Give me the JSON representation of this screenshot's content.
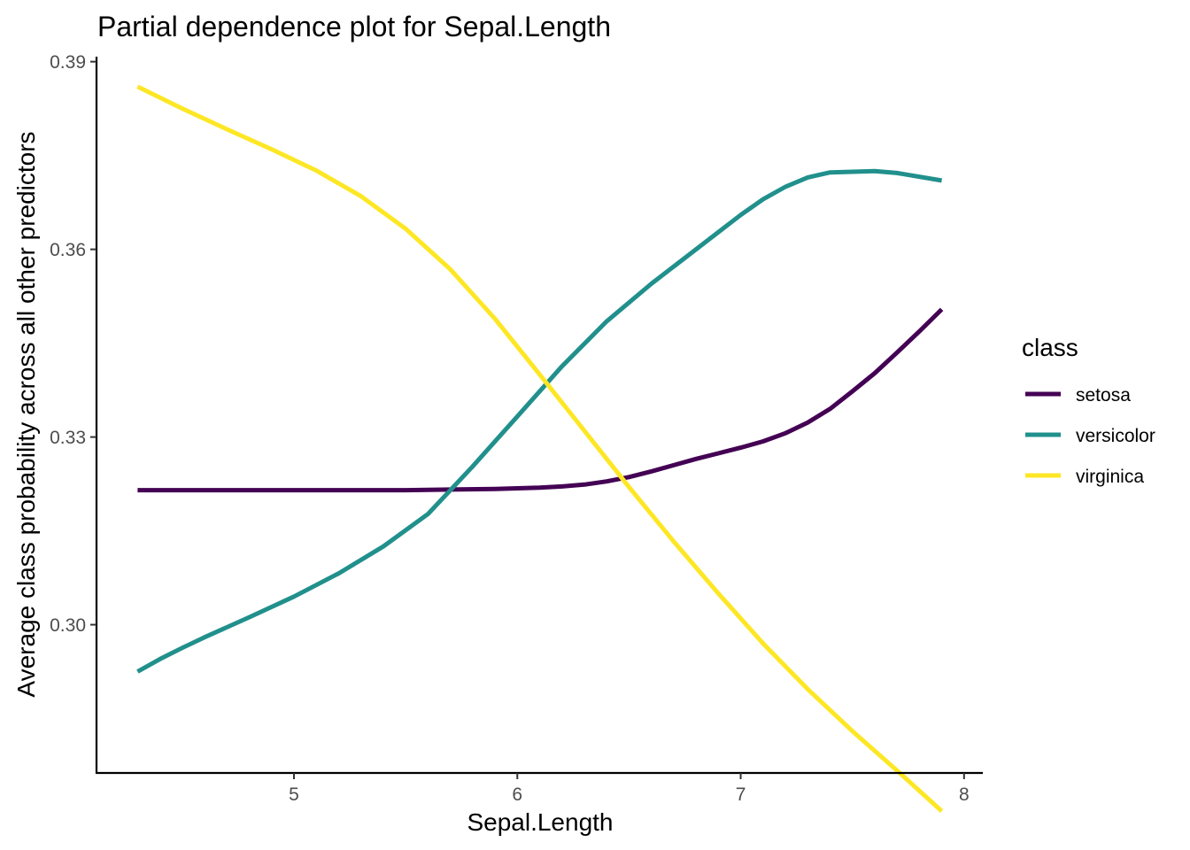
{
  "chart_data": {
    "type": "line",
    "title": "Partial dependence plot for Sepal.Length",
    "xlabel": "Sepal.Length",
    "ylabel": "Average class probability across all other predictors",
    "xlim": [
      4.12,
      8.08
    ],
    "ylim": [
      0.2763,
      0.3908
    ],
    "x_ticks": [
      5,
      6,
      7,
      8
    ],
    "x_tick_labels": [
      "5",
      "6",
      "7",
      "8"
    ],
    "y_ticks": [
      0.3,
      0.33,
      0.36,
      0.39
    ],
    "y_tick_labels": [
      "0.30",
      "0.33",
      "0.36",
      "0.39"
    ],
    "grid": false,
    "legend": {
      "title": "class",
      "position": "right"
    },
    "series": [
      {
        "name": "setosa",
        "color": "#440154",
        "x": [
          4.3,
          4.5,
          4.7,
          4.9,
          5.1,
          5.3,
          5.5,
          5.7,
          5.9,
          6.1,
          6.2,
          6.3,
          6.4,
          6.5,
          6.6,
          6.7,
          6.8,
          6.9,
          7.0,
          7.1,
          7.2,
          7.3,
          7.4,
          7.5,
          7.6,
          7.7,
          7.8,
          7.9
        ],
        "y": [
          0.3215,
          0.3215,
          0.3215,
          0.3215,
          0.3215,
          0.3215,
          0.3215,
          0.3216,
          0.3217,
          0.3219,
          0.3221,
          0.3224,
          0.3229,
          0.3236,
          0.3245,
          0.3255,
          0.3265,
          0.3274,
          0.3283,
          0.3293,
          0.3306,
          0.3323,
          0.3345,
          0.3373,
          0.3402,
          0.3435,
          0.3469,
          0.3504
        ]
      },
      {
        "name": "versicolor",
        "color": "#21908C",
        "x": [
          4.3,
          4.4,
          4.5,
          4.6,
          4.8,
          5.0,
          5.2,
          5.4,
          5.6,
          5.8,
          6.0,
          6.2,
          6.4,
          6.6,
          6.8,
          7.0,
          7.1,
          7.2,
          7.3,
          7.4,
          7.5,
          7.6,
          7.7,
          7.9
        ],
        "y": [
          0.2925,
          0.2945,
          0.2963,
          0.298,
          0.3012,
          0.3045,
          0.3082,
          0.3125,
          0.3177,
          0.3253,
          0.3333,
          0.3413,
          0.3485,
          0.3545,
          0.36,
          0.3655,
          0.368,
          0.37,
          0.3715,
          0.3723,
          0.3724,
          0.3725,
          0.3722,
          0.371
        ]
      },
      {
        "name": "virginica",
        "color": "#FDE725",
        "x": [
          4.3,
          4.5,
          4.7,
          4.9,
          5.1,
          5.3,
          5.5,
          5.7,
          5.9,
          6.1,
          6.3,
          6.5,
          6.7,
          6.9,
          7.1,
          7.3,
          7.5,
          7.7,
          7.9
        ],
        "y": [
          0.386,
          0.3825,
          0.3792,
          0.376,
          0.3726,
          0.3685,
          0.3633,
          0.3568,
          0.3489,
          0.34,
          0.331,
          0.322,
          0.3133,
          0.305,
          0.297,
          0.2897,
          0.283,
          0.2767,
          0.2702
        ]
      }
    ]
  }
}
